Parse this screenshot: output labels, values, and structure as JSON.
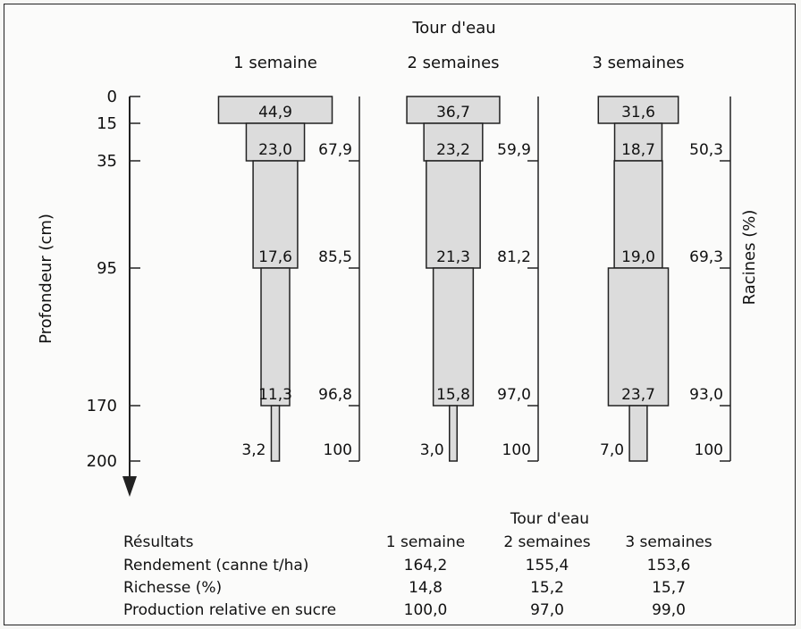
{
  "chart_data": {
    "type": "bar",
    "title": "Tour d'eau",
    "ylabel": "Profondeur (cm)",
    "y2label": "Racines (%)",
    "depth_ticks": [
      0,
      15,
      35,
      95,
      170,
      200
    ],
    "series": [
      {
        "name": "1 semaine",
        "layers": [
          {
            "top": 0,
            "bottom": 15,
            "pct": "44,9",
            "value": 44.9,
            "cum": ""
          },
          {
            "top": 15,
            "bottom": 35,
            "pct": "23,0",
            "value": 23.0,
            "cum": "67,9"
          },
          {
            "top": 35,
            "bottom": 95,
            "pct": "17,6",
            "value": 17.6,
            "cum": "85,5"
          },
          {
            "top": 95,
            "bottom": 170,
            "pct": "11,3",
            "value": 11.3,
            "cum": "96,8"
          },
          {
            "top": 170,
            "bottom": 200,
            "pct": "3,2",
            "value": 3.2,
            "cum": "100"
          }
        ]
      },
      {
        "name": "2 semaines",
        "layers": [
          {
            "top": 0,
            "bottom": 15,
            "pct": "36,7",
            "value": 36.7,
            "cum": ""
          },
          {
            "top": 15,
            "bottom": 35,
            "pct": "23,2",
            "value": 23.2,
            "cum": "59,9"
          },
          {
            "top": 35,
            "bottom": 95,
            "pct": "21,3",
            "value": 21.3,
            "cum": "81,2"
          },
          {
            "top": 95,
            "bottom": 170,
            "pct": "15,8",
            "value": 15.8,
            "cum": "97,0"
          },
          {
            "top": 170,
            "bottom": 200,
            "pct": "3,0",
            "value": 3.0,
            "cum": "100"
          }
        ]
      },
      {
        "name": "3 semaines",
        "layers": [
          {
            "top": 0,
            "bottom": 15,
            "pct": "31,6",
            "value": 31.6,
            "cum": ""
          },
          {
            "top": 15,
            "bottom": 35,
            "pct": "18,7",
            "value": 18.7,
            "cum": "50,3"
          },
          {
            "top": 35,
            "bottom": 95,
            "pct": "19,0",
            "value": 19.0,
            "cum": "69,3"
          },
          {
            "top": 95,
            "bottom": 170,
            "pct": "23,7",
            "value": 23.7,
            "cum": "93,0"
          },
          {
            "top": 170,
            "bottom": 200,
            "pct": "7,0",
            "value": 7.0,
            "cum": "100"
          }
        ]
      }
    ],
    "colors": {
      "bar_fill": "#dcdcdc",
      "stroke": "#222222"
    }
  },
  "results": {
    "header": "Tour d'eau",
    "title": "Résultats",
    "columns": [
      "1 semaine",
      "2 semaines",
      "3 semaines"
    ],
    "rows": [
      {
        "label": "Rendement (canne t/ha)",
        "values": [
          "164,2",
          "155,4",
          "153,6"
        ]
      },
      {
        "label": "Richesse (%)",
        "values": [
          "14,8",
          "15,2",
          "15,7"
        ]
      },
      {
        "label": "Production relative en sucre",
        "values": [
          "100,0",
          "97,0",
          "99,0"
        ]
      }
    ]
  }
}
